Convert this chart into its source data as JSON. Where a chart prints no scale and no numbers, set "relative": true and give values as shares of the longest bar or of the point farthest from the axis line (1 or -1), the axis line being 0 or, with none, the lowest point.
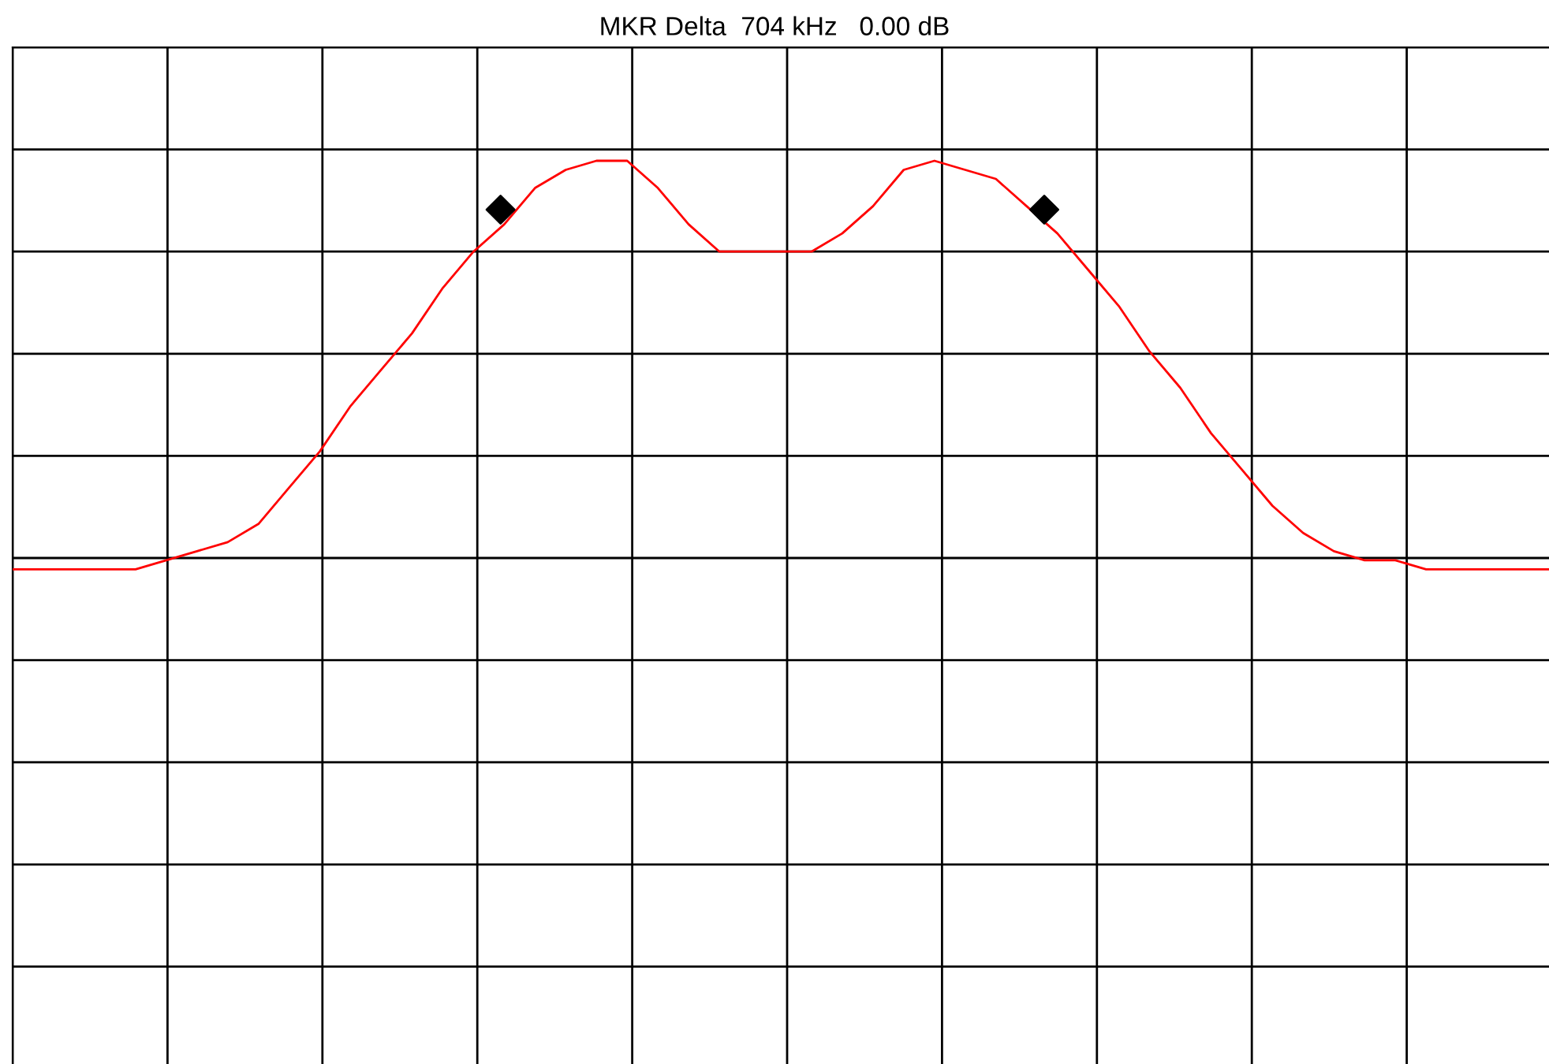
{
  "chart_data": {
    "type": "line",
    "title": "MKR Delta  704 kHz   0.00 dB",
    "relative": true,
    "grid": true,
    "tick_labels": false,
    "categories": [
      null,
      null,
      null,
      null,
      null,
      null,
      null,
      null,
      null,
      null,
      null,
      null,
      null,
      null,
      null,
      null,
      null,
      null,
      null,
      null,
      null,
      null,
      null,
      null,
      null,
      null,
      null,
      null,
      null,
      null,
      null,
      null,
      null,
      null,
      null,
      null,
      null,
      null,
      null,
      null,
      null,
      null,
      null,
      null,
      null,
      null,
      null,
      null,
      null,
      null,
      null
    ],
    "series": [
      {
        "color": "#ff0000",
        "values": [
          0.55,
          0.55,
          0.55,
          0.55,
          0.55,
          0.56,
          0.57,
          0.58,
          0.6,
          0.64,
          0.68,
          0.73,
          0.77,
          0.81,
          0.86,
          0.9,
          0.93,
          0.97,
          0.99,
          1.0,
          1.0,
          0.97,
          0.93,
          0.9,
          0.9,
          0.9,
          0.9,
          0.92,
          0.95,
          0.99,
          1.0,
          0.99,
          0.98,
          0.95,
          0.92,
          0.88,
          0.84,
          0.79,
          0.75,
          0.7,
          0.66,
          0.62,
          0.59,
          0.57,
          0.56,
          0.56,
          0.55,
          0.55,
          0.55,
          0.55,
          0.55
        ]
      }
    ]
  }
}
